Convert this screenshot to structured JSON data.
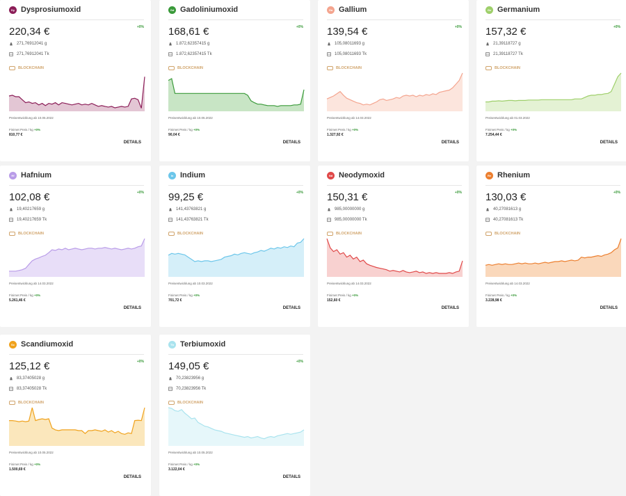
{
  "cards": [
    {
      "abbr": "Dy",
      "name": "Dysprosiumoxid",
      "price": "220,34 €",
      "pct": "+0%",
      "grams": "271,76912041 g",
      "tokens": "271,76912041 Tk",
      "blockchain": "BLOCKCHAIN",
      "since": "Preisentwicklung ab 10.05.2022",
      "fin_label": "Finimet Preis / kg",
      "fin_pct": "+0%",
      "fin_value": "810,77 €",
      "details": "DETAILS",
      "color": "#8b1d57",
      "fill": "#d9b3c6",
      "chart": [
        0.62,
        0.6,
        0.64,
        0.64,
        0.72,
        0.8,
        0.78,
        0.82,
        0.8,
        0.86,
        0.82,
        0.88,
        0.82,
        0.84,
        0.8,
        0.86,
        0.8,
        0.82,
        0.84,
        0.86,
        0.84,
        0.82,
        0.86,
        0.84,
        0.86,
        0.82,
        0.86,
        0.9,
        0.88,
        0.9,
        0.92,
        0.9,
        0.94,
        0.92,
        0.9,
        0.92,
        0.9,
        0.7,
        0.68,
        0.72,
        0.95,
        0.1
      ]
    },
    {
      "abbr": "Gd",
      "name": "Gadoliniumoxid",
      "price": "168,61 €",
      "pct": "+0%",
      "grams": "1.872,62357415 g",
      "tokens": "1.872,62357415 Tk",
      "blockchain": "BLOCKCHAIN",
      "since": "Preisentwicklung ab 10.05.2022",
      "fin_label": "Finimet Preis / kg",
      "fin_pct": "+0%",
      "fin_value": "90,04 €",
      "details": "DETAILS",
      "color": "#3a9a3a",
      "fill": "#b5dcb2",
      "chart": [
        0.2,
        0.15,
        0.55,
        0.55,
        0.55,
        0.55,
        0.55,
        0.55,
        0.55,
        0.55,
        0.55,
        0.55,
        0.55,
        0.55,
        0.55,
        0.55,
        0.55,
        0.55,
        0.55,
        0.55,
        0.55,
        0.55,
        0.55,
        0.55,
        0.6,
        0.75,
        0.8,
        0.84,
        0.84,
        0.86,
        0.88,
        0.88,
        0.88,
        0.9,
        0.88,
        0.88,
        0.88,
        0.88,
        0.86,
        0.86,
        0.84,
        0.45
      ]
    },
    {
      "abbr": "Ga",
      "name": "Gallium",
      "price": "139,54 €",
      "pct": "+0%",
      "grams": "105,08011693 g",
      "tokens": "105,08011693 Tk",
      "blockchain": "BLOCKCHAIN",
      "since": "Preisentwicklung ab 14.03.2022",
      "fin_label": "Finimet Preis / kg",
      "fin_pct": "+0%",
      "fin_value": "1.327,92 €",
      "details": "DETAILS",
      "color": "#f4a48e",
      "fill": "#fbdcd2",
      "chart": [
        0.7,
        0.66,
        0.62,
        0.56,
        0.5,
        0.6,
        0.68,
        0.72,
        0.76,
        0.8,
        0.82,
        0.86,
        0.84,
        0.86,
        0.82,
        0.78,
        0.72,
        0.7,
        0.74,
        0.72,
        0.7,
        0.66,
        0.68,
        0.62,
        0.6,
        0.62,
        0.6,
        0.64,
        0.6,
        0.62,
        0.58,
        0.6,
        0.56,
        0.58,
        0.52,
        0.5,
        0.48,
        0.46,
        0.4,
        0.3,
        0.2,
        0.0
      ]
    },
    {
      "abbr": "Ge",
      "name": "Germanium",
      "price": "157,32 €",
      "pct": "+0%",
      "grams": "21,39118727 g",
      "tokens": "21,39118727 Tk",
      "blockchain": "BLOCKCHAIN",
      "since": "Preisentwicklung ab 01.03.2022",
      "fin_label": "Finimet Preis / kg",
      "fin_pct": "+0%",
      "fin_value": "7.254,44 €",
      "details": "DETAILS",
      "color": "#9ecf6a",
      "fill": "#dbeec6",
      "chart": [
        0.78,
        0.78,
        0.76,
        0.76,
        0.75,
        0.76,
        0.75,
        0.74,
        0.74,
        0.75,
        0.74,
        0.74,
        0.74,
        0.73,
        0.73,
        0.73,
        0.73,
        0.72,
        0.72,
        0.72,
        0.72,
        0.72,
        0.72,
        0.72,
        0.72,
        0.72,
        0.72,
        0.7,
        0.7,
        0.7,
        0.66,
        0.62,
        0.6,
        0.6,
        0.58,
        0.58,
        0.56,
        0.55,
        0.5,
        0.3,
        0.1,
        0.0
      ]
    },
    {
      "abbr": "Hf",
      "name": "Hafnium",
      "price": "102,08 €",
      "pct": "+0%",
      "grams": "19,40217659 g",
      "tokens": "19,40217659 Tk",
      "blockchain": "BLOCKCHAIN",
      "since": "Preisentwicklung ab 14.03.2022",
      "fin_label": "Finimet Preis / kg",
      "fin_pct": "+0%",
      "fin_value": "5.261,46 €",
      "details": "DETAILS",
      "color": "#b99ce8",
      "fill": "#e0d3f6",
      "chart": [
        0.88,
        0.88,
        0.88,
        0.86,
        0.84,
        0.8,
        0.7,
        0.6,
        0.55,
        0.52,
        0.48,
        0.45,
        0.38,
        0.3,
        0.32,
        0.28,
        0.3,
        0.26,
        0.3,
        0.28,
        0.26,
        0.28,
        0.3,
        0.28,
        0.26,
        0.26,
        0.28,
        0.26,
        0.26,
        0.24,
        0.26,
        0.28,
        0.26,
        0.28,
        0.3,
        0.28,
        0.26,
        0.28,
        0.26,
        0.22,
        0.2,
        0.0
      ]
    },
    {
      "abbr": "In",
      "name": "Indium",
      "price": "99,25 €",
      "pct": "+0%",
      "grams": "141,43763821 g",
      "tokens": "141,43763821 Tk",
      "blockchain": "BLOCKCHAIN",
      "since": "Preisentwicklung ab 10.03.2022",
      "fin_label": "Finimet Preis / kg",
      "fin_pct": "+0%",
      "fin_value": "701,72 €",
      "details": "DETAILS",
      "color": "#6cc6ea",
      "fill": "#c7e9f7",
      "chart": [
        0.45,
        0.4,
        0.42,
        0.4,
        0.42,
        0.44,
        0.5,
        0.56,
        0.62,
        0.6,
        0.62,
        0.6,
        0.6,
        0.62,
        0.6,
        0.58,
        0.56,
        0.5,
        0.48,
        0.46,
        0.42,
        0.44,
        0.4,
        0.38,
        0.4,
        0.42,
        0.38,
        0.36,
        0.32,
        0.34,
        0.3,
        0.26,
        0.28,
        0.24,
        0.26,
        0.22,
        0.24,
        0.2,
        0.22,
        0.12,
        0.1,
        0.0
      ]
    },
    {
      "abbr": "Nd",
      "name": "Neodymoxid",
      "price": "150,31 €",
      "pct": "+0%",
      "grams": "985,00000000 g",
      "tokens": "985,00000000 Tk",
      "blockchain": "BLOCKCHAIN",
      "since": "Preisentwicklung ab 14.03.2022",
      "fin_label": "Finimet Preis / kg",
      "fin_pct": "+0%",
      "fin_value": "152,60 €",
      "details": "DETAILS",
      "color": "#e04848",
      "fill": "#f5c2c0",
      "chart": [
        0.0,
        0.25,
        0.35,
        0.3,
        0.42,
        0.38,
        0.5,
        0.45,
        0.55,
        0.5,
        0.62,
        0.58,
        0.68,
        0.72,
        0.75,
        0.78,
        0.8,
        0.82,
        0.84,
        0.88,
        0.86,
        0.88,
        0.9,
        0.86,
        0.9,
        0.92,
        0.9,
        0.88,
        0.92,
        0.9,
        0.94,
        0.92,
        0.94,
        0.92,
        0.94,
        0.94,
        0.94,
        0.92,
        0.94,
        0.9,
        0.88,
        0.6
      ]
    },
    {
      "abbr": "Re",
      "name": "Rhenium",
      "price": "130,03 €",
      "pct": "+0%",
      "grams": "40,27081613 g",
      "tokens": "40,27081613 Tk",
      "blockchain": "BLOCKCHAIN",
      "since": "Preisentwicklung ab 14.03.2022",
      "fin_label": "Finimet Preis / kg",
      "fin_pct": "+0%",
      "fin_value": "3.228,98 €",
      "details": "DETAILS",
      "color": "#ec7f2f",
      "fill": "#f8cba4",
      "chart": [
        0.72,
        0.7,
        0.72,
        0.7,
        0.68,
        0.7,
        0.68,
        0.7,
        0.7,
        0.68,
        0.66,
        0.68,
        0.66,
        0.68,
        0.68,
        0.66,
        0.68,
        0.66,
        0.64,
        0.66,
        0.64,
        0.62,
        0.62,
        0.6,
        0.62,
        0.6,
        0.58,
        0.6,
        0.58,
        0.5,
        0.52,
        0.5,
        0.5,
        0.48,
        0.46,
        0.48,
        0.44,
        0.42,
        0.38,
        0.3,
        0.25,
        0.0
      ]
    },
    {
      "abbr": "Sc",
      "name": "Scandiumoxid",
      "price": "125,12 €",
      "pct": "+0%",
      "grams": "83,37405028 g",
      "tokens": "83,37405028 Tk",
      "blockchain": "BLOCKCHAIN",
      "since": "Preisentwicklung ab 10.05.2022",
      "fin_label": "Finimet Preis / kg",
      "fin_pct": "+0%",
      "fin_value": "1.500,69 €",
      "details": "DETAILS",
      "color": "#f0a21c",
      "fill": "#fadfa6",
      "chart": [
        0.35,
        0.35,
        0.36,
        0.38,
        0.36,
        0.38,
        0.36,
        0.0,
        0.35,
        0.32,
        0.3,
        0.32,
        0.3,
        0.55,
        0.6,
        0.62,
        0.6,
        0.6,
        0.6,
        0.6,
        0.6,
        0.62,
        0.62,
        0.7,
        0.62,
        0.62,
        0.6,
        0.62,
        0.64,
        0.6,
        0.66,
        0.62,
        0.68,
        0.64,
        0.7,
        0.72,
        0.68,
        0.7,
        0.35,
        0.34,
        0.35,
        0.0
      ]
    },
    {
      "abbr": "Tb",
      "name": "Terbiumoxid",
      "price": "149,05 €",
      "pct": "+0%",
      "grams": "70,23823956 g",
      "tokens": "70,23823956 Tk",
      "blockchain": "BLOCKCHAIN",
      "since": "Preisentwicklung ab 10.05.2022",
      "fin_label": "Finimet Preis / kg",
      "fin_pct": "+0%",
      "fin_value": "3.122,04 €",
      "details": "DETAILS",
      "color": "#a9e3ee",
      "fill": "#def4f8",
      "chart": [
        0.0,
        0.02,
        0.08,
        0.1,
        0.05,
        0.15,
        0.22,
        0.3,
        0.28,
        0.4,
        0.45,
        0.5,
        0.52,
        0.56,
        0.6,
        0.62,
        0.64,
        0.68,
        0.7,
        0.72,
        0.74,
        0.76,
        0.78,
        0.8,
        0.78,
        0.82,
        0.8,
        0.78,
        0.82,
        0.84,
        0.8,
        0.78,
        0.8,
        0.76,
        0.74,
        0.72,
        0.7,
        0.72,
        0.7,
        0.68,
        0.66,
        0.6
      ]
    }
  ]
}
